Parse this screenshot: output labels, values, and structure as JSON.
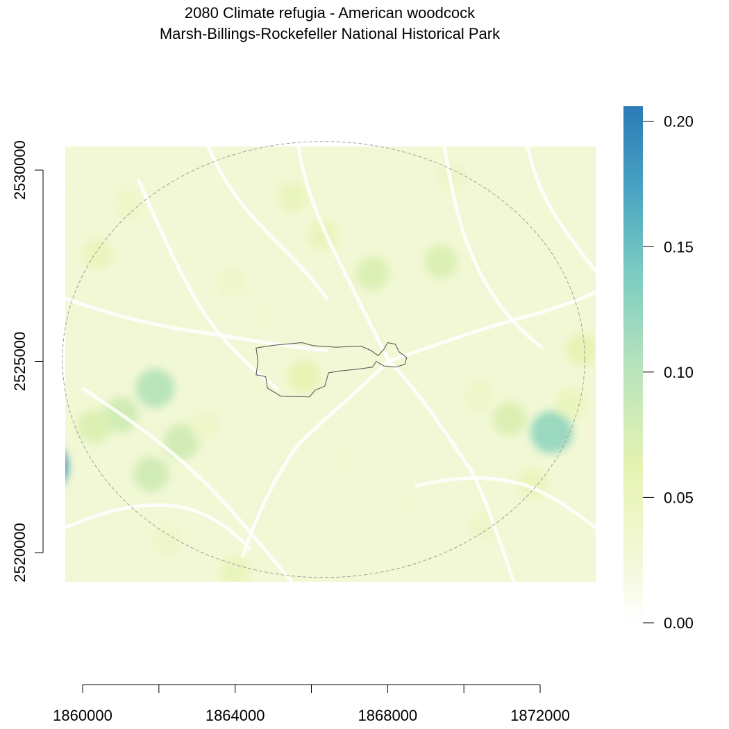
{
  "title": {
    "line1": "2080 Climate refugia - American woodcock",
    "line2": "Marsh-Billings-Rockefeller National Historical Park"
  },
  "chart_data": {
    "type": "heatmap",
    "x_axis": {
      "ticks": [
        1860000,
        1862000,
        1864000,
        1866000,
        1868000,
        1870000,
        1872000
      ],
      "labels": [
        "1860000",
        "",
        "1864000",
        "",
        "1868000",
        "",
        "1872000"
      ],
      "range": [
        1858600,
        1872600
      ]
    },
    "y_axis": {
      "ticks": [
        2520000,
        2525000,
        2530000
      ],
      "labels": [
        "2520000",
        "2525000",
        "2530000"
      ],
      "range": [
        2519250,
        2530600
      ]
    },
    "legend": {
      "position": "right",
      "range": [
        0.0,
        0.206
      ],
      "ticks": [
        0.0,
        0.05,
        0.1,
        0.15,
        0.2
      ],
      "labels": [
        "0.00",
        "0.05",
        "0.10",
        "0.15",
        "0.20"
      ],
      "colors": [
        "#ffffff",
        "#f5f9dd",
        "#e6f3b2",
        "#b6e3bc",
        "#7acbc3",
        "#46a0c2",
        "#2c7bb6"
      ]
    },
    "hotspots": [
      {
        "x": 1858900,
        "y": 2522250,
        "value": 0.19
      },
      {
        "x": 1861900,
        "y": 2524300,
        "value": 0.1
      },
      {
        "x": 1861000,
        "y": 2523600,
        "value": 0.08
      },
      {
        "x": 1860300,
        "y": 2523300,
        "value": 0.07
      },
      {
        "x": 1862600,
        "y": 2522900,
        "value": 0.08
      },
      {
        "x": 1861800,
        "y": 2522050,
        "value": 0.08
      },
      {
        "x": 1872300,
        "y": 2523150,
        "value": 0.12
      },
      {
        "x": 1871200,
        "y": 2523500,
        "value": 0.07
      },
      {
        "x": 1869400,
        "y": 2527600,
        "value": 0.07
      },
      {
        "x": 1867600,
        "y": 2527300,
        "value": 0.07
      },
      {
        "x": 1866300,
        "y": 2528300,
        "value": 0.05
      },
      {
        "x": 1865500,
        "y": 2529300,
        "value": 0.05
      },
      {
        "x": 1860400,
        "y": 2527800,
        "value": 0.05
      },
      {
        "x": 1861200,
        "y": 2529100,
        "value": 0.04
      },
      {
        "x": 1863900,
        "y": 2527100,
        "value": 0.04
      },
      {
        "x": 1865800,
        "y": 2524600,
        "value": 0.06
      },
      {
        "x": 1873100,
        "y": 2525300,
        "value": 0.06
      },
      {
        "x": 1872800,
        "y": 2523900,
        "value": 0.05
      },
      {
        "x": 1870400,
        "y": 2524100,
        "value": 0.04
      },
      {
        "x": 1859100,
        "y": 2529600,
        "value": 0.05
      },
      {
        "x": 1862200,
        "y": 2520300,
        "value": 0.04
      },
      {
        "x": 1864000,
        "y": 2519500,
        "value": 0.05
      },
      {
        "x": 1868600,
        "y": 2521300,
        "value": 0.03
      },
      {
        "x": 1870500,
        "y": 2520700,
        "value": 0.04
      },
      {
        "x": 1871800,
        "y": 2521800,
        "value": 0.05
      },
      {
        "x": 1869700,
        "y": 2529800,
        "value": 0.04
      },
      {
        "x": 1864700,
        "y": 2526200,
        "value": 0.03
      },
      {
        "x": 1872200,
        "y": 2528600,
        "value": 0.03
      },
      {
        "x": 1859400,
        "y": 2526100,
        "value": 0.03
      },
      {
        "x": 1863200,
        "y": 2523300,
        "value": 0.04
      },
      {
        "x": 1866900,
        "y": 2522400,
        "value": 0.03
      }
    ],
    "park_boundary": [
      [
        1864550,
        2525350
      ],
      [
        1865000,
        2525420
      ],
      [
        1865750,
        2525490
      ],
      [
        1866050,
        2525410
      ],
      [
        1866650,
        2525370
      ],
      [
        1867300,
        2525400
      ],
      [
        1867550,
        2525290
      ],
      [
        1867750,
        2525150
      ],
      [
        1867900,
        2525310
      ],
      [
        1868000,
        2525490
      ],
      [
        1868200,
        2525450
      ],
      [
        1868300,
        2525250
      ],
      [
        1868500,
        2525100
      ],
      [
        1868450,
        2524920
      ],
      [
        1868200,
        2524850
      ],
      [
        1867900,
        2524880
      ],
      [
        1867700,
        2525000
      ],
      [
        1867600,
        2524850
      ],
      [
        1867250,
        2524800
      ],
      [
        1866750,
        2524750
      ],
      [
        1866450,
        2524700
      ],
      [
        1866350,
        2524350
      ],
      [
        1866100,
        2524250
      ],
      [
        1865950,
        2524070
      ],
      [
        1865200,
        2524090
      ],
      [
        1864850,
        2524300
      ],
      [
        1864800,
        2524600
      ],
      [
        1864550,
        2524650
      ],
      [
        1864600,
        2525000
      ]
    ],
    "buffer_ellipse": {
      "cx": 1866320,
      "cy": 2525050,
      "rx": 6850,
      "ry": 5700
    }
  }
}
